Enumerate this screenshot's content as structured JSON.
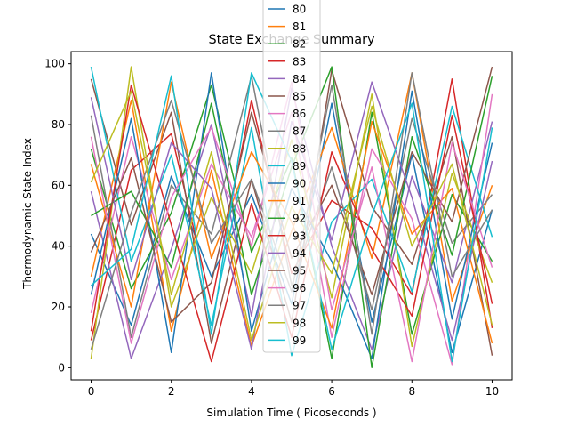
{
  "chart_data": {
    "type": "line",
    "title": "State Exchange Summary",
    "xlabel": "Simulation Time ( Picoseconds )",
    "ylabel": "Thermodynamic State Index",
    "xlim": [
      -0.5,
      10.5
    ],
    "ylim": [
      -4,
      104
    ],
    "xticks": [
      0,
      2,
      4,
      6,
      8,
      10
    ],
    "yticks": [
      0,
      20,
      40,
      60,
      80,
      100
    ],
    "x": [
      0,
      1,
      2,
      3,
      4,
      5,
      6,
      7,
      8,
      9,
      10
    ],
    "grid": false,
    "legend_position": "top-center",
    "legend_entries": [
      "80",
      "81",
      "82",
      "83",
      "84",
      "85",
      "86",
      "87",
      "88",
      "89",
      "90",
      "91",
      "92",
      "93",
      "94",
      "95",
      "96",
      "97",
      "98",
      "99"
    ],
    "total_series_estimated": 100,
    "series": [
      {
        "name": "80",
        "values": [
          44,
          14,
          63,
          30,
          57,
          21,
          87,
          15,
          70,
          5,
          52
        ]
      },
      {
        "name": "81",
        "values": [
          30,
          88,
          12,
          65,
          7,
          45,
          79,
          36,
          97,
          22,
          60
        ]
      },
      {
        "name": "82",
        "values": [
          72,
          26,
          51,
          93,
          38,
          69,
          3,
          84,
          11,
          57,
          35
        ]
      },
      {
        "name": "83",
        "values": [
          9,
          65,
          77,
          21,
          88,
          31,
          55,
          46,
          24,
          95,
          13
        ]
      },
      {
        "name": "84",
        "values": [
          58,
          3,
          39,
          80,
          17,
          92,
          40,
          6,
          63,
          28,
          81
        ]
      },
      {
        "name": "85",
        "values": [
          95,
          47,
          84,
          8,
          62,
          15,
          98,
          53,
          34,
          76,
          4
        ]
      },
      {
        "name": "86",
        "values": [
          18,
          76,
          29,
          67,
          43,
          84,
          10,
          72,
          49,
          1,
          90
        ]
      },
      {
        "name": "87",
        "values": [
          83,
          10,
          60,
          44,
          96,
          27,
          66,
          19,
          82,
          41,
          57
        ]
      },
      {
        "name": "88",
        "values": [
          3,
          99,
          20,
          56,
          31,
          75,
          23,
          90,
          7,
          64,
          28
        ]
      },
      {
        "name": "89",
        "values": [
          99,
          35,
          70,
          14,
          79,
          4,
          48,
          62,
          25,
          86,
          43
        ]
      },
      {
        "name": "90",
        "values": [
          24,
          82,
          5,
          97,
          12,
          59,
          35,
          3,
          91,
          16,
          74
        ]
      },
      {
        "name": "91",
        "values": [
          67,
          20,
          94,
          36,
          71,
          48,
          13,
          81,
          44,
          59,
          8
        ]
      },
      {
        "name": "92",
        "values": [
          50,
          58,
          33,
          87,
          24,
          66,
          99,
          0,
          76,
          37,
          96
        ]
      },
      {
        "name": "93",
        "values": [
          12,
          93,
          47,
          2,
          54,
          10,
          71,
          39,
          17,
          83,
          21
        ]
      },
      {
        "name": "94",
        "values": [
          89,
          29,
          74,
          59,
          6,
          81,
          42,
          94,
          56,
          9,
          68
        ]
      },
      {
        "name": "95",
        "values": [
          38,
          69,
          15,
          28,
          84,
          36,
          60,
          24,
          71,
          48,
          99
        ]
      },
      {
        "name": "96",
        "values": [
          76,
          8,
          56,
          79,
          40,
          94,
          19,
          66,
          2,
          74,
          33
        ]
      },
      {
        "name": "97",
        "values": [
          6,
          51,
          88,
          41,
          62,
          25,
          93,
          11,
          97,
          30,
          52
        ]
      },
      {
        "name": "98",
        "values": [
          61,
          91,
          24,
          71,
          9,
          53,
          31,
          86,
          40,
          67,
          14
        ]
      },
      {
        "name": "99",
        "values": [
          27,
          39,
          96,
          11,
          97,
          68,
          6,
          50,
          87,
          2,
          79
        ]
      }
    ]
  }
}
